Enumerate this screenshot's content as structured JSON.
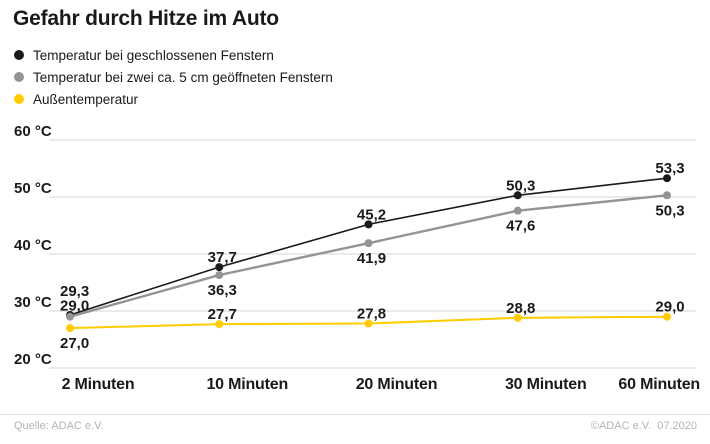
{
  "title": "Gefahr durch Hitze im Auto",
  "legend": [
    {
      "label": "Temperatur bei geschlossenen Fenstern",
      "color": "#1a1a1a"
    },
    {
      "label": "Temperatur bei zwei ca. 5 cm geöffneten Fenstern",
      "color": "#949494"
    },
    {
      "label": "Außentemperatur",
      "color": "#ffcc00"
    }
  ],
  "footer": {
    "source": "Quelle: ADAC e.V.",
    "credit": "©ADAC e.V.  07.2020"
  },
  "chart_data": {
    "type": "line",
    "title": "Gefahr durch Hitze im Auto",
    "categories": [
      "2 Minuten",
      "10 Minuten",
      "20 Minuten",
      "30 Minuten",
      "60 Minuten"
    ],
    "series": [
      {
        "name": "Temperatur bei geschlossenen Fenstern",
        "color": "#1a1a1a",
        "values": [
          29.3,
          37.7,
          45.2,
          50.3,
          53.3
        ],
        "label_placement": [
          "start-above",
          "above",
          "above",
          "above",
          "above"
        ]
      },
      {
        "name": "Temperatur bei zwei ca. 5 cm geöffneten Fenstern",
        "color": "#949494",
        "values": [
          29.0,
          36.3,
          41.9,
          47.6,
          50.3
        ],
        "label_placement": [
          "start-mid",
          "below",
          "below",
          "below",
          "below"
        ]
      },
      {
        "name": "Außentemperatur",
        "color": "#ffcc00",
        "values": [
          27.0,
          27.7,
          27.8,
          28.8,
          29.0
        ],
        "label_placement": [
          "start-below",
          "above",
          "above",
          "above",
          "above"
        ]
      }
    ],
    "xlabel": "",
    "ylabel": "°C",
    "ylim": [
      20,
      60
    ],
    "yticks": [
      60,
      50,
      40,
      30,
      20
    ],
    "ytick_format": "{v} °C",
    "decimal_separator": ",",
    "grid": true,
    "legend_position": "top-left"
  }
}
